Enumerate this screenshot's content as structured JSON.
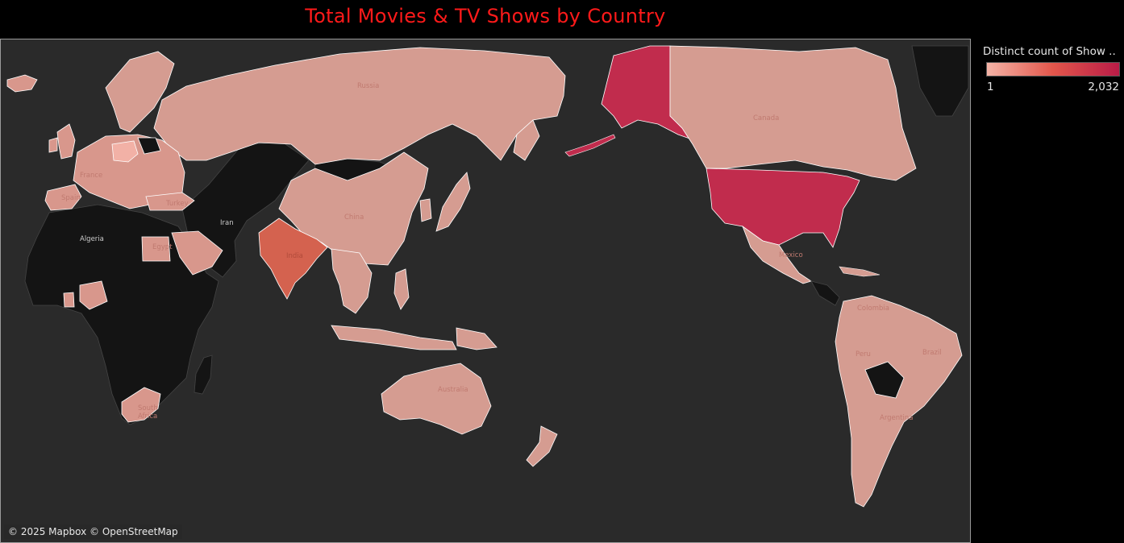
{
  "title": "Total Movies & TV Shows by Country",
  "legend": {
    "title": "Distinct count of Show ..",
    "min_label": "1",
    "max_label": "2,032",
    "min_color": "#f4b3a6",
    "mid_color": "#e2564b",
    "max_color": "#b91c47"
  },
  "attribution": "© 2025 Mapbox © OpenStreetMap",
  "colors": {
    "ocean": "#2a2a2a",
    "no_data": "#141414",
    "low": "#d9968a",
    "high": "#c12c4d",
    "india": "#d4624f",
    "border": "#ffffff"
  },
  "chart_data": {
    "type": "map",
    "measure": "Distinct count of Show ..",
    "range": [
      1,
      2032
    ],
    "countries": [
      {
        "name": "United States",
        "level": "high"
      },
      {
        "name": "Alaska",
        "level": "high"
      },
      {
        "name": "India",
        "level": "medium-high"
      },
      {
        "name": "Canada",
        "level": "low"
      },
      {
        "name": "Russia",
        "level": "low"
      },
      {
        "name": "China",
        "level": "low"
      },
      {
        "name": "Australia",
        "level": "low"
      },
      {
        "name": "Brazil",
        "level": "low"
      },
      {
        "name": "Mexico",
        "level": "low"
      },
      {
        "name": "Argentina",
        "level": "low"
      },
      {
        "name": "Colombia",
        "level": "low"
      },
      {
        "name": "Egypt",
        "level": "low"
      },
      {
        "name": "South Africa",
        "level": "low"
      },
      {
        "name": "Japan",
        "level": "low"
      },
      {
        "name": "France",
        "level": "low"
      },
      {
        "name": "Spain",
        "level": "low"
      },
      {
        "name": "Turkey",
        "level": "low"
      },
      {
        "name": "Algeria",
        "level": "none"
      },
      {
        "name": "Iran",
        "level": "none"
      }
    ]
  },
  "labels": {
    "russia": "Russia",
    "canada": "Canada",
    "china": "China",
    "india": "India",
    "iran": "Iran",
    "algeria": "Algeria",
    "egypt": "Egypt",
    "france": "France",
    "spain": "Spain",
    "turkey": "Turkey",
    "australia": "Australia",
    "brazil": "Brazil",
    "mexico": "Mexico",
    "colombia": "Colombia",
    "argentina": "Argentina",
    "south_africa_1": "South",
    "south_africa_2": "Africa",
    "peru": "Peru"
  }
}
